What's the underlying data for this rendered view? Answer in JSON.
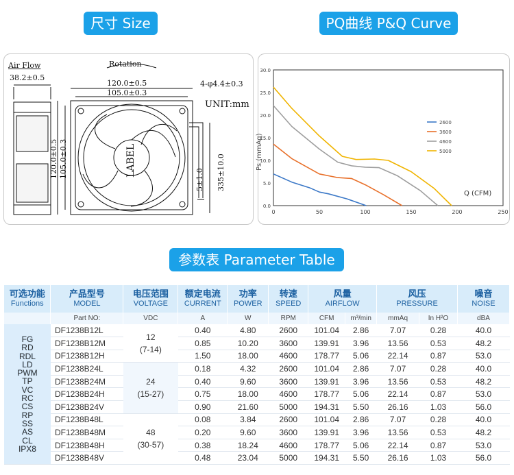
{
  "headings": {
    "size": "尺寸 Size",
    "pq": "PQ曲线 P&Q Curve",
    "params": "参数表 Parameter Table"
  },
  "drawing": {
    "airflow": "Air Flow",
    "depth": "38.2±0.5",
    "rotation": "Rotation",
    "width_outer": "120.0±0.5",
    "width_inner": "105.0±0.3",
    "holes": "4-φ4.4±0.3",
    "unit": "UNIT:mm",
    "height_outer": "120.0±0.5",
    "height_inner": "105.0±0.3",
    "wire_end": "5±1.0",
    "lead_length": "335±10.0",
    "label": "LABEL"
  },
  "chart_data": {
    "type": "line",
    "ylabel": "Ps (mmAq)",
    "xlabel": "Q (CFM)",
    "xlim": [
      0,
      250
    ],
    "ylim": [
      0,
      30
    ],
    "xticks": [
      "0",
      "50",
      "100",
      "150",
      "200",
      "250"
    ],
    "yticks": [
      "0.0",
      "5.0",
      "10.0",
      "15.0",
      "20.0",
      "25.0",
      "30.0"
    ],
    "legend_position": "right",
    "series": [
      {
        "name": "2600",
        "color": "#3b78c7",
        "x": [
          0,
          20,
          40,
          50,
          60,
          80,
          101
        ],
        "y": [
          7.0,
          5.2,
          3.9,
          3.0,
          2.6,
          1.5,
          0
        ]
      },
      {
        "name": "3600",
        "color": "#e8702a",
        "x": [
          0,
          20,
          50,
          70,
          85,
          100,
          120,
          140
        ],
        "y": [
          13.6,
          10.4,
          7.0,
          6.2,
          6.0,
          4.6,
          2.4,
          0
        ]
      },
      {
        "name": "4600",
        "color": "#9e9e9e",
        "x": [
          0,
          20,
          50,
          70,
          85,
          100,
          115,
          135,
          160,
          179
        ],
        "y": [
          22.1,
          17.5,
          12.5,
          9.6,
          8.8,
          8.5,
          8.4,
          6.6,
          3.3,
          0
        ]
      },
      {
        "name": "5000",
        "color": "#f0b400",
        "x": [
          0,
          20,
          50,
          75,
          90,
          110,
          125,
          150,
          175,
          194
        ],
        "y": [
          26.2,
          21.5,
          15.4,
          10.9,
          10.2,
          10.3,
          10.0,
          7.5,
          3.8,
          0
        ]
      }
    ]
  },
  "table": {
    "headers": [
      {
        "cn": "可选功能",
        "en": "Functions"
      },
      {
        "cn": "产品型号",
        "en": "MODEL"
      },
      {
        "cn": "电压范围",
        "en": "VOLTAGE"
      },
      {
        "cn": "额定电流",
        "en": "CURRENT"
      },
      {
        "cn": "功率",
        "en": "POWER"
      },
      {
        "cn": "转速",
        "en": "SPEED"
      },
      {
        "cn": "风量",
        "en": "AIRFLOW"
      },
      {
        "cn": "风压",
        "en": "PRESSURE"
      },
      {
        "cn": "噪音",
        "en": "NOISE"
      }
    ],
    "units": [
      "Part NO:",
      "VDC",
      "A",
      "W",
      "RPM",
      "CFM",
      "m³/min",
      "mmAq",
      "In H²O",
      "dBA"
    ],
    "functions": "FG\nRD\nRDL\nLD\nPWM\nTP\nVC\nRC\nCS\nRP\nSS\nAS\nCL\nIPX8",
    "voltage_groups": [
      {
        "v": "12",
        "range": "(7-14)"
      },
      {
        "v": "24",
        "range": "(15-27)"
      },
      {
        "v": "48",
        "range": "(30-57)"
      }
    ],
    "rows": [
      [
        "DF1238B12L",
        "0.40",
        "4.80",
        "2600",
        "101.04",
        "2.86",
        "7.07",
        "0.28",
        "40.0"
      ],
      [
        "DF1238B12M",
        "0.85",
        "10.20",
        "3600",
        "139.91",
        "3.96",
        "13.56",
        "0.53",
        "48.2"
      ],
      [
        "DF1238B12H",
        "1.50",
        "18.00",
        "4600",
        "178.77",
        "5.06",
        "22.14",
        "0.87",
        "53.0"
      ],
      [
        "DF1238B24L",
        "0.18",
        "4.32",
        "2600",
        "101.04",
        "2.86",
        "7.07",
        "0.28",
        "40.0"
      ],
      [
        "DF1238B24M",
        "0.40",
        "9.60",
        "3600",
        "139.91",
        "3.96",
        "13.56",
        "0.53",
        "48.2"
      ],
      [
        "DF1238B24H",
        "0.75",
        "18.00",
        "4600",
        "178.77",
        "5.06",
        "22.14",
        "0.87",
        "53.0"
      ],
      [
        "DF1238B24V",
        "0.90",
        "21.60",
        "5000",
        "194.31",
        "5.50",
        "26.16",
        "1.03",
        "56.0"
      ],
      [
        "DF1238B48L",
        "0.08",
        "3.84",
        "2600",
        "101.04",
        "2.86",
        "7.07",
        "0.28",
        "40.0"
      ],
      [
        "DF1238B48M",
        "0.20",
        "9.60",
        "3600",
        "139.91",
        "3.96",
        "13.56",
        "0.53",
        "48.2"
      ],
      [
        "DF1238B48H",
        "0.38",
        "18.24",
        "4600",
        "178.77",
        "5.06",
        "22.14",
        "0.87",
        "53.0"
      ],
      [
        "DF1238B48V",
        "0.48",
        "23.04",
        "5000",
        "194.31",
        "5.50",
        "26.16",
        "1.03",
        "56.0"
      ]
    ]
  }
}
